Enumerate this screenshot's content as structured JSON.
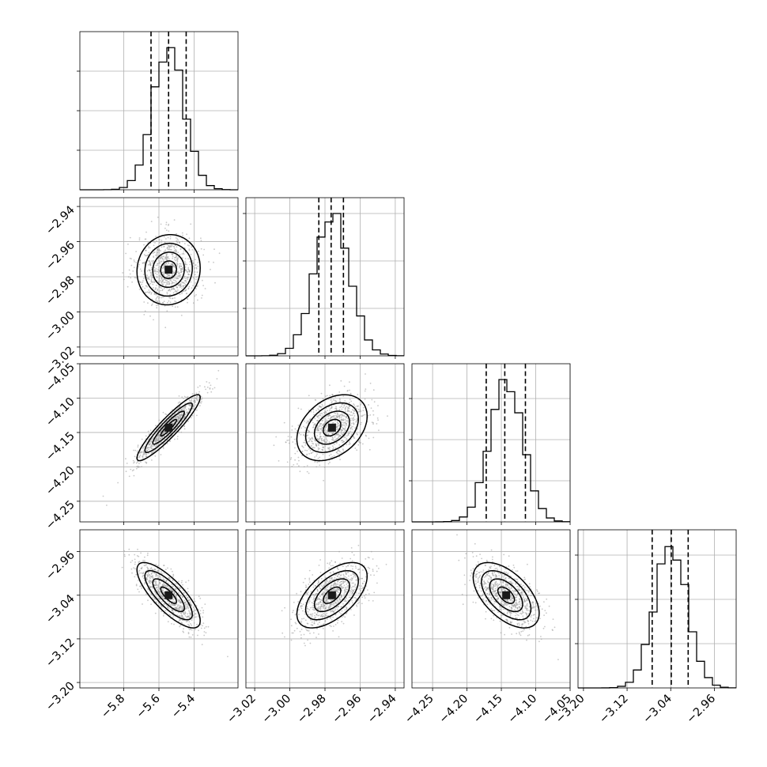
{
  "chart_data": {
    "type": "corner",
    "grid": true,
    "parameters": [
      {
        "range": [
          -6.05,
          -5.15
        ],
        "mean": -5.545,
        "sd": 0.09,
        "quantiles": [
          -5.645,
          -5.545,
          -5.445
        ],
        "ticks": [
          -5.8,
          -5.6,
          -5.4
        ],
        "tick_labels": [
          "−5.8",
          "−5.6",
          "−5.4"
        ],
        "hist_grid": [
          0.25,
          0.5,
          0.75
        ]
      },
      {
        "range": [
          -3.025,
          -2.935
        ],
        "mean": -2.976,
        "sd": 0.01,
        "quantiles": [
          -2.9835,
          -2.9765,
          -2.9695
        ],
        "ticks": [
          -3.02,
          -3.0,
          -2.98,
          -2.96,
          -2.94
        ],
        "tick_labels": [
          "−3.02",
          "−3.00",
          "−2.98",
          "−2.96",
          "−2.94"
        ],
        "hist_grid": [
          0.3,
          0.6,
          0.9
        ]
      },
      {
        "range": [
          -4.28,
          -4.05
        ],
        "mean": -4.143,
        "sd": 0.024,
        "quantiles": [
          -4.172,
          -4.145,
          -4.115
        ],
        "ticks": [
          -4.25,
          -4.2,
          -4.15,
          -4.1,
          -4.05
        ],
        "tick_labels": [
          "−4.25",
          "−4.20",
          "−4.15",
          "−4.10",
          "−4.05"
        ],
        "hist_grid": [
          0.26,
          0.52,
          0.78
        ]
      },
      {
        "range": [
          -3.21,
          -2.92
        ],
        "mean": -3.04,
        "sd": 0.03,
        "quantiles": [
          -3.074,
          -3.039,
          -3.008
        ],
        "ticks": [
          -3.2,
          -3.12,
          -3.04,
          -2.96
        ],
        "tick_labels": [
          "−3.20",
          "−3.12",
          "−3.04",
          "−2.96"
        ],
        "hist_grid": [
          0.28,
          0.56,
          0.84
        ]
      }
    ],
    "correlations": [
      [
        1,
        0.05,
        0.92,
        -0.78
      ],
      [
        0.05,
        1,
        0.35,
        0.58
      ],
      [
        0.92,
        0.35,
        1,
        -0.55
      ],
      [
        -0.78,
        0.58,
        -0.55,
        1
      ]
    ],
    "contour_levels_sigma": [
      0.5,
      1.0,
      1.5,
      2.0
    ]
  }
}
